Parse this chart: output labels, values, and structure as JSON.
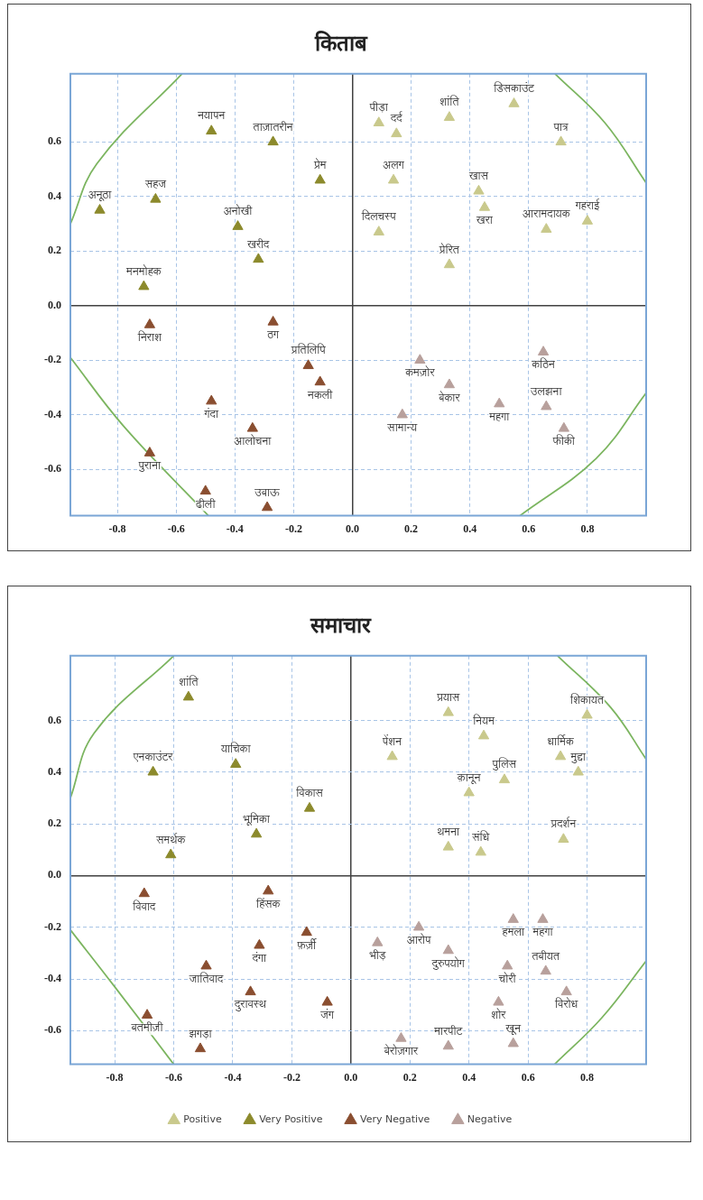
{
  "chart_data": [
    {
      "type": "scatter",
      "title": "किताब",
      "xlim": [
        -0.96,
        1.0
      ],
      "ylim": [
        -0.77,
        0.85
      ],
      "xticks": [
        -0.8,
        -0.6,
        -0.4,
        -0.2,
        {
          "value": 0,
          "label": "0.0"
        },
        0.2,
        0.4,
        0.6,
        0.8
      ],
      "yticks": [
        -0.6,
        -0.4,
        -0.2,
        {
          "value": 0,
          "label": "0.0"
        },
        0.2,
        0.4,
        0.6
      ],
      "grid": true,
      "legend": false,
      "marker": "triangle",
      "series": [
        {
          "color": "#c9c98c",
          "x": [
            0.09,
            0.15,
            0.14,
            0.33,
            0.55,
            0.71,
            0.43,
            0.45,
            0.09,
            0.33,
            0.8,
            0.66
          ],
          "values": [
            0.67,
            0.63,
            0.46,
            0.69,
            0.74,
            0.6,
            0.42,
            0.36,
            0.27,
            0.15,
            0.31,
            0.28
          ]
        },
        {
          "color": "#8c8a2c",
          "x": [
            -0.27,
            -0.48,
            -0.11,
            -0.67,
            -0.86,
            -0.39,
            -0.71,
            -0.32
          ],
          "values": [
            0.6,
            0.64,
            0.46,
            0.39,
            0.35,
            0.29,
            0.07,
            0.17
          ]
        },
        {
          "color": "#8a4e30",
          "x": [
            -0.69,
            -0.27,
            -0.15,
            -0.11,
            -0.48,
            -0.69,
            -0.34,
            -0.5,
            -0.29
          ],
          "values": [
            -0.07,
            -0.06,
            -0.22,
            -0.28,
            -0.35,
            -0.54,
            -0.45,
            -0.68,
            -0.74
          ]
        },
        {
          "color": "#b8a09c",
          "x": [
            0.23,
            0.65,
            0.33,
            0.5,
            0.66,
            0.17,
            0.72
          ],
          "values": [
            -0.2,
            -0.17,
            -0.29,
            -0.36,
            -0.37,
            -0.4,
            -0.45
          ]
        },
        {
          "type": "line",
          "color": "#7cb560",
          "marker": "none",
          "x": [
            -0.58,
            -0.87,
            -0.96
          ],
          "values": [
            0.85,
            0.52,
            0.3
          ]
        },
        {
          "type": "line",
          "color": "#7cb560",
          "marker": "none",
          "x": [
            -0.96,
            -0.78,
            -0.49
          ],
          "values": [
            -0.19,
            -0.44,
            -0.77
          ]
        },
        {
          "type": "line",
          "color": "#7cb560",
          "marker": "none",
          "x": [
            0.57,
            0.83,
            1.0
          ],
          "values": [
            -0.77,
            -0.56,
            -0.32
          ]
        },
        {
          "type": "line",
          "color": "#7cb560",
          "marker": "none",
          "x": [
            1.0,
            0.86,
            0.69
          ],
          "values": [
            0.45,
            0.67,
            0.85
          ]
        }
      ],
      "annotations": [
        {
          "text": "ताज़ातरीन",
          "x": -0.27,
          "y": 0.6
        },
        {
          "text": "नयापन",
          "x": -0.48,
          "y": 0.64
        },
        {
          "text": "प्रेम",
          "x": -0.11,
          "y": 0.46
        },
        {
          "text": "सहज",
          "x": -0.67,
          "y": 0.39
        },
        {
          "text": "अनूठा",
          "x": -0.86,
          "y": 0.35
        },
        {
          "text": "अनोखी",
          "x": -0.39,
          "y": 0.29
        },
        {
          "text": "मनमोहक",
          "x": -0.71,
          "y": 0.07
        },
        {
          "text": "खरीद",
          "x": -0.32,
          "y": 0.17
        },
        {
          "text": "निराश",
          "x": -0.69,
          "y": -0.07
        },
        {
          "text": "ठग",
          "x": -0.27,
          "y": -0.06
        },
        {
          "text": "प्रतिलिपि",
          "x": -0.15,
          "y": -0.22
        },
        {
          "text": "नकली",
          "x": -0.11,
          "y": -0.28
        },
        {
          "text": "गंदा",
          "x": -0.48,
          "y": -0.35
        },
        {
          "text": "पुराना",
          "x": -0.69,
          "y": -0.54
        },
        {
          "text": "आलोचना",
          "x": -0.34,
          "y": -0.45
        },
        {
          "text": "ढीली",
          "x": -0.5,
          "y": -0.68
        },
        {
          "text": "उबाऊ",
          "x": -0.29,
          "y": -0.74
        },
        {
          "text": "पीड़ा",
          "x": 0.09,
          "y": 0.67
        },
        {
          "text": "दर्द",
          "x": 0.15,
          "y": 0.63
        },
        {
          "text": "अलग",
          "x": 0.14,
          "y": 0.46
        },
        {
          "text": "शांति",
          "x": 0.33,
          "y": 0.69
        },
        {
          "text": "डिसकाउंट",
          "x": 0.55,
          "y": 0.74
        },
        {
          "text": "पात्र",
          "x": 0.71,
          "y": 0.6
        },
        {
          "text": "खास",
          "x": 0.43,
          "y": 0.42
        },
        {
          "text": "खरा",
          "x": 0.45,
          "y": 0.36
        },
        {
          "text": "दिलचस्प",
          "x": 0.09,
          "y": 0.27
        },
        {
          "text": "प्रेरित",
          "x": 0.33,
          "y": 0.15
        },
        {
          "text": "गहराई",
          "x": 0.8,
          "y": 0.31
        },
        {
          "text": "आरामदायक",
          "x": 0.66,
          "y": 0.28
        },
        {
          "text": "कमज़ोर",
          "x": 0.23,
          "y": -0.2
        },
        {
          "text": "कठिन",
          "x": 0.65,
          "y": -0.17
        },
        {
          "text": "बेकार",
          "x": 0.33,
          "y": -0.29
        },
        {
          "text": "महगा",
          "x": 0.5,
          "y": -0.36
        },
        {
          "text": "उलझना",
          "x": 0.66,
          "y": -0.37
        },
        {
          "text": "सामान्य",
          "x": 0.17,
          "y": -0.4
        },
        {
          "text": "फीकी",
          "x": 0.72,
          "y": -0.45
        }
      ]
    },
    {
      "type": "scatter",
      "title": "समाचार",
      "xlim": [
        -0.95,
        1.0
      ],
      "ylim": [
        -0.73,
        0.85
      ],
      "xticks": [
        -0.8,
        -0.6,
        -0.4,
        -0.2,
        {
          "value": 0,
          "label": "0.0"
        },
        0.2,
        0.4,
        0.6,
        0.8
      ],
      "yticks": [
        -0.6,
        -0.4,
        -0.2,
        {
          "value": 0,
          "label": "0.0"
        },
        0.2,
        0.4,
        0.6
      ],
      "grid": true,
      "legend": "bottom",
      "marker": "triangle",
      "series": [
        {
          "name": "Positive",
          "color": "#c9c98c",
          "x": [
            0.33,
            0.14,
            0.45,
            0.8,
            0.52,
            0.71,
            0.77,
            0.4,
            0.33,
            0.44,
            0.72
          ],
          "values": [
            0.63,
            0.46,
            0.54,
            0.62,
            0.37,
            0.46,
            0.4,
            0.32,
            0.11,
            0.09,
            0.14
          ]
        },
        {
          "name": "Very Positive",
          "color": "#8c8a2c",
          "x": [
            -0.55,
            -0.39,
            -0.67,
            -0.14,
            -0.61,
            -0.32
          ],
          "values": [
            0.69,
            0.43,
            0.4,
            0.26,
            0.08,
            0.16
          ]
        },
        {
          "name": "Very Negative",
          "color": "#8a4e30",
          "x": [
            -0.7,
            -0.28,
            -0.15,
            -0.49,
            -0.31,
            -0.69,
            -0.34,
            -0.08,
            -0.51
          ],
          "values": [
            -0.07,
            -0.06,
            -0.22,
            -0.35,
            -0.27,
            -0.54,
            -0.45,
            -0.49,
            -0.67
          ]
        },
        {
          "name": "Negative",
          "color": "#b8a09c",
          "x": [
            0.23,
            0.55,
            0.65,
            0.09,
            0.33,
            0.53,
            0.66,
            0.5,
            0.73,
            0.17,
            0.33,
            0.55
          ],
          "values": [
            -0.2,
            -0.17,
            -0.17,
            -0.26,
            -0.29,
            -0.35,
            -0.37,
            -0.49,
            -0.45,
            -0.63,
            -0.66,
            -0.65
          ]
        },
        {
          "type": "line",
          "color": "#7cb560",
          "marker": "none",
          "x": [
            -0.6,
            -0.87,
            -0.95
          ],
          "values": [
            0.85,
            0.55,
            0.3
          ]
        },
        {
          "type": "line",
          "color": "#7cb560",
          "marker": "none",
          "x": [
            -0.95,
            -0.8,
            -0.6
          ],
          "values": [
            -0.21,
            -0.43,
            -0.73
          ]
        },
        {
          "type": "line",
          "color": "#7cb560",
          "marker": "none",
          "x": [
            0.69,
            0.85,
            1.0
          ],
          "values": [
            -0.73,
            -0.55,
            -0.33
          ]
        },
        {
          "type": "line",
          "color": "#7cb560",
          "marker": "none",
          "x": [
            1.0,
            0.88,
            0.7
          ],
          "values": [
            0.45,
            0.65,
            0.85
          ]
        }
      ],
      "annotations": [
        {
          "text": "शांति",
          "x": -0.55,
          "y": 0.69
        },
        {
          "text": "याचिका",
          "x": -0.39,
          "y": 0.43
        },
        {
          "text": "एनकाउंटर",
          "x": -0.67,
          "y": 0.4
        },
        {
          "text": "विकास",
          "x": -0.14,
          "y": 0.26
        },
        {
          "text": "समर्थक",
          "x": -0.61,
          "y": 0.08
        },
        {
          "text": "भूमिका",
          "x": -0.32,
          "y": 0.16
        },
        {
          "text": "विवाद",
          "x": -0.7,
          "y": -0.07
        },
        {
          "text": "हिंसक",
          "x": -0.28,
          "y": -0.06
        },
        {
          "text": "फ़र्ज़ी",
          "x": -0.15,
          "y": -0.22
        },
        {
          "text": "जातिवाद",
          "x": -0.49,
          "y": -0.35
        },
        {
          "text": "दंगा",
          "x": -0.31,
          "y": -0.27
        },
        {
          "text": "बतमीज़ी",
          "x": -0.69,
          "y": -0.54
        },
        {
          "text": "दुरावस्थ",
          "x": -0.34,
          "y": -0.45
        },
        {
          "text": "जंग",
          "x": -0.08,
          "y": -0.49
        },
        {
          "text": "झगड़ा",
          "x": -0.51,
          "y": -0.67
        },
        {
          "text": "प्रयास",
          "x": 0.33,
          "y": 0.63
        },
        {
          "text": "पेंशन",
          "x": 0.14,
          "y": 0.46
        },
        {
          "text": "नियम",
          "x": 0.45,
          "y": 0.54
        },
        {
          "text": "शिकायत",
          "x": 0.8,
          "y": 0.62
        },
        {
          "text": "पुलिस",
          "x": 0.52,
          "y": 0.37
        },
        {
          "text": "धार्मिक",
          "x": 0.71,
          "y": 0.46
        },
        {
          "text": "मुद्दा",
          "x": 0.77,
          "y": 0.4
        },
        {
          "text": "क़ानून",
          "x": 0.4,
          "y": 0.32
        },
        {
          "text": "थमना",
          "x": 0.33,
          "y": 0.11
        },
        {
          "text": "संधि",
          "x": 0.44,
          "y": 0.09
        },
        {
          "text": "प्रदर्शन",
          "x": 0.72,
          "y": 0.14
        },
        {
          "text": "आरोप",
          "x": 0.23,
          "y": -0.2
        },
        {
          "text": "हमला",
          "x": 0.55,
          "y": -0.17
        },
        {
          "text": "महगा",
          "x": 0.65,
          "y": -0.17
        },
        {
          "text": "भीड़",
          "x": 0.09,
          "y": -0.26
        },
        {
          "text": "दुरुपयोग",
          "x": 0.33,
          "y": -0.29
        },
        {
          "text": "चोरी",
          "x": 0.53,
          "y": -0.35
        },
        {
          "text": "तबीयत",
          "x": 0.66,
          "y": -0.37
        },
        {
          "text": "शोर",
          "x": 0.5,
          "y": -0.49
        },
        {
          "text": "विरोध",
          "x": 0.73,
          "y": -0.45
        },
        {
          "text": "बेरोज़गार",
          "x": 0.17,
          "y": -0.63
        },
        {
          "text": "मारपीट",
          "x": 0.33,
          "y": -0.66
        },
        {
          "text": "खून",
          "x": 0.55,
          "y": -0.65
        }
      ]
    }
  ]
}
